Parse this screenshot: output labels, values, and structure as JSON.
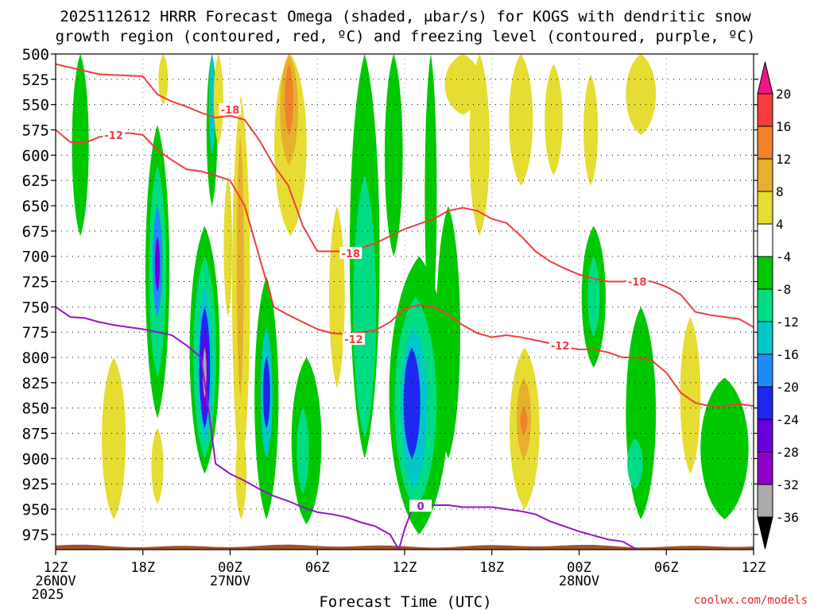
{
  "chart_data": {
    "type": "heatmap",
    "title_line1": "2025112612 HRRR Forecast Omega (shaded, μbar/s) for KOGS with dendritic snow",
    "title_line2": "growth region (contoured, red, ºC) and freezing level (contoured, purple, ºC)",
    "xlabel": "Forecast Time (UTC)",
    "credit": "coolwx.com/models",
    "x_range_hours": [
      0,
      48
    ],
    "y_range_mb": [
      500,
      990
    ],
    "yticks": [
      500,
      525,
      550,
      575,
      600,
      625,
      650,
      675,
      700,
      725,
      750,
      775,
      800,
      825,
      850,
      875,
      900,
      925,
      950,
      975
    ],
    "xticks": [
      {
        "h": 0,
        "label": "12Z",
        "sub1": "26NOV",
        "sub2": "2025"
      },
      {
        "h": 6,
        "label": "18Z",
        "sub1": "",
        "sub2": ""
      },
      {
        "h": 12,
        "label": "00Z",
        "sub1": "27NOV",
        "sub2": ""
      },
      {
        "h": 18,
        "label": "06Z",
        "sub1": "",
        "sub2": ""
      },
      {
        "h": 24,
        "label": "12Z",
        "sub1": "",
        "sub2": ""
      },
      {
        "h": 30,
        "label": "18Z",
        "sub1": "",
        "sub2": ""
      },
      {
        "h": 36,
        "label": "00Z",
        "sub1": "28NOV",
        "sub2": ""
      },
      {
        "h": 42,
        "label": "06Z",
        "sub1": "",
        "sub2": ""
      },
      {
        "h": 48,
        "label": "12Z",
        "sub1": "",
        "sub2": ""
      }
    ],
    "colorbar": {
      "colors": [
        "#aaaaaa",
        "#9200c8",
        "#6a00dc",
        "#1e28f0",
        "#1e8cff",
        "#00c8c8",
        "#00dc82",
        "#00c800",
        "#ffffff",
        "#e6dc32",
        "#e6af2d",
        "#f08228",
        "#fa3c3c"
      ],
      "labels": [
        "-36",
        "-32",
        "-28",
        "-24",
        "-20",
        "-16",
        "-12",
        "-8",
        "-4",
        "4",
        "8",
        "12",
        "16",
        "20"
      ],
      "top_color": "#f0148c",
      "bottom_color": "#000000"
    },
    "colors": {
      "dgz": "#f03c3c",
      "freezing": "#9614c8",
      "ground": "#a0522d"
    },
    "dgz_contours": [
      {
        "label": "-18",
        "label_at": [
          12.0,
          555
        ],
        "label2": "-18",
        "label2_at": [
          20.3,
          697
        ],
        "label3": "-18",
        "label3_at": [
          40.0,
          725
        ],
        "points": [
          [
            0,
            510
          ],
          [
            3,
            520
          ],
          [
            6,
            522
          ],
          [
            7,
            540
          ],
          [
            8,
            547
          ],
          [
            9,
            552
          ],
          [
            10,
            558
          ],
          [
            11,
            563
          ],
          [
            12,
            561
          ],
          [
            13,
            565
          ],
          [
            14,
            585
          ],
          [
            15,
            610
          ],
          [
            16,
            630
          ],
          [
            17,
            670
          ],
          [
            18,
            695
          ],
          [
            20,
            695
          ],
          [
            21,
            692
          ],
          [
            22,
            687
          ],
          [
            23,
            680
          ],
          [
            24,
            673
          ],
          [
            25,
            668
          ],
          [
            26,
            663
          ],
          [
            27,
            655
          ],
          [
            28,
            652
          ],
          [
            29,
            655
          ],
          [
            30,
            663
          ],
          [
            31,
            667
          ],
          [
            32,
            680
          ],
          [
            33,
            695
          ],
          [
            34,
            705
          ],
          [
            35,
            712
          ],
          [
            36,
            718
          ],
          [
            37,
            722
          ],
          [
            38,
            725
          ],
          [
            39,
            725
          ],
          [
            40,
            723
          ],
          [
            41,
            725
          ],
          [
            42,
            730
          ],
          [
            43,
            738
          ],
          [
            44,
            755
          ],
          [
            45,
            758
          ],
          [
            46,
            760
          ],
          [
            47,
            762
          ],
          [
            48,
            770
          ]
        ]
      },
      {
        "label": "-12",
        "label_at": [
          4.0,
          580
        ],
        "label2": "-12",
        "label2_at": [
          20.5,
          782
        ],
        "label3": "-12",
        "label3_at": [
          34.7,
          788
        ],
        "points": [
          [
            0,
            575
          ],
          [
            1,
            587
          ],
          [
            2,
            588
          ],
          [
            3,
            582
          ],
          [
            4,
            580
          ],
          [
            5,
            578
          ],
          [
            6,
            580
          ],
          [
            7,
            595
          ],
          [
            8,
            605
          ],
          [
            9,
            614
          ],
          [
            10,
            616
          ],
          [
            11,
            620
          ],
          [
            12,
            625
          ],
          [
            13,
            650
          ],
          [
            14,
            700
          ],
          [
            15,
            750
          ],
          [
            16,
            758
          ],
          [
            17,
            765
          ],
          [
            18,
            772
          ],
          [
            19,
            776
          ],
          [
            20,
            777
          ],
          [
            21,
            775
          ],
          [
            22,
            773
          ],
          [
            23,
            765
          ],
          [
            24,
            752
          ],
          [
            25,
            748
          ],
          [
            26,
            750
          ],
          [
            27,
            758
          ],
          [
            28,
            768
          ],
          [
            29,
            776
          ],
          [
            30,
            780
          ],
          [
            31,
            778
          ],
          [
            32,
            780
          ],
          [
            33,
            783
          ],
          [
            34,
            786
          ],
          [
            35,
            790
          ],
          [
            36,
            792
          ],
          [
            37,
            792
          ],
          [
            38,
            795
          ],
          [
            39,
            800
          ],
          [
            40,
            800
          ],
          [
            41,
            803
          ],
          [
            42,
            815
          ],
          [
            43,
            835
          ],
          [
            44,
            845
          ],
          [
            45,
            848
          ],
          [
            46,
            848
          ],
          [
            47,
            846
          ],
          [
            48,
            848
          ]
        ]
      }
    ],
    "freezing_contour": {
      "label": "0",
      "label_at": [
        25.1,
        947
      ],
      "points": [
        [
          0,
          750
        ],
        [
          1,
          760
        ],
        [
          2,
          761
        ],
        [
          3,
          765
        ],
        [
          4,
          768
        ],
        [
          5,
          770
        ],
        [
          6,
          772
        ],
        [
          7,
          775
        ],
        [
          8,
          778
        ],
        [
          9,
          788
        ],
        [
          10,
          800
        ],
        [
          10.5,
          850
        ],
        [
          11,
          905
        ],
        [
          12,
          915
        ],
        [
          13,
          922
        ],
        [
          14,
          930
        ],
        [
          15,
          937
        ],
        [
          16,
          942
        ],
        [
          17,
          948
        ],
        [
          18,
          953
        ],
        [
          19,
          955
        ],
        [
          20,
          958
        ],
        [
          21,
          963
        ],
        [
          22,
          967
        ],
        [
          23,
          975
        ],
        [
          23.6,
          990
        ],
        [
          24,
          970
        ],
        [
          24.5,
          950
        ],
        [
          25,
          946
        ],
        [
          26,
          946
        ],
        [
          27,
          946
        ],
        [
          28,
          948
        ],
        [
          29,
          948
        ],
        [
          30,
          948
        ],
        [
          31,
          950
        ],
        [
          32,
          952
        ],
        [
          33,
          955
        ],
        [
          34,
          962
        ],
        [
          35,
          967
        ],
        [
          36,
          972
        ],
        [
          37,
          976
        ],
        [
          38,
          980
        ],
        [
          39,
          982
        ],
        [
          40,
          990
        ]
      ]
    },
    "omega_patches": [
      {
        "h": [
          1.0,
          2.4
        ],
        "p": [
          500,
          680
        ],
        "v": -6,
        "cx": 1.7,
        "cy": 560,
        "shape": "tall"
      },
      {
        "h": [
          6.0,
          8.0
        ],
        "p": [
          570,
          860
        ],
        "v": -6,
        "cx": 7.0,
        "cy": 720
      },
      {
        "h": [
          6.3,
          7.7
        ],
        "p": [
          610,
          820
        ],
        "v": -10
      },
      {
        "h": [
          6.6,
          7.4
        ],
        "p": [
          650,
          760
        ],
        "v": -18
      },
      {
        "h": [
          6.8,
          7.2
        ],
        "p": [
          680,
          735
        ],
        "v": -26
      },
      {
        "h": [
          9.0,
          11.5
        ],
        "p": [
          670,
          915
        ],
        "v": -6
      },
      {
        "h": [
          9.3,
          11.2
        ],
        "p": [
          700,
          900
        ],
        "v": -10
      },
      {
        "h": [
          9.6,
          10.9
        ],
        "p": [
          730,
          885
        ],
        "v": -16
      },
      {
        "h": [
          9.8,
          10.7
        ],
        "p": [
          750,
          870
        ],
        "v": -22
      },
      {
        "h": [
          10.0,
          10.5
        ],
        "p": [
          770,
          860
        ],
        "v": -28
      },
      {
        "h": [
          10.1,
          10.4
        ],
        "p": [
          790,
          840
        ],
        "v": -34
      },
      {
        "h": [
          10.3,
          11.2
        ],
        "p": [
          500,
          650
        ],
        "v": -8
      },
      {
        "h": [
          10.5,
          11.0
        ],
        "p": [
          500,
          600
        ],
        "v": -14
      },
      {
        "h": [
          13.5,
          15.5
        ],
        "p": [
          720,
          960
        ],
        "v": -6
      },
      {
        "h": [
          14.0,
          15.0
        ],
        "p": [
          770,
          900
        ],
        "v": -14
      },
      {
        "h": [
          14.2,
          14.8
        ],
        "p": [
          800,
          870
        ],
        "v": -24
      },
      {
        "h": [
          16.0,
          18.5
        ],
        "p": [
          800,
          965
        ],
        "v": -6
      },
      {
        "h": [
          16.5,
          17.5
        ],
        "p": [
          850,
          935
        ],
        "v": -12
      },
      {
        "h": [
          20.0,
          22.5
        ],
        "p": [
          500,
          900
        ],
        "v": -6
      },
      {
        "h": [
          20.3,
          22.2
        ],
        "p": [
          620,
          880
        ],
        "v": -9
      },
      {
        "h": [
          22.5,
          24.0
        ],
        "p": [
          500,
          700
        ],
        "v": -6
      },
      {
        "h": [
          22.5,
          27.5
        ],
        "p": [
          700,
          975
        ],
        "v": -6
      },
      {
        "h": [
          23.0,
          26.5
        ],
        "p": [
          740,
          950
        ],
        "v": -10
      },
      {
        "h": [
          23.5,
          25.8
        ],
        "p": [
          770,
          930
        ],
        "v": -16
      },
      {
        "h": [
          23.8,
          25.2
        ],
        "p": [
          790,
          900
        ],
        "v": -21
      },
      {
        "h": [
          24.0,
          24.8
        ],
        "p": [
          810,
          880
        ],
        "v": -24
      },
      {
        "h": [
          25.3,
          26.3
        ],
        "p": [
          500,
          780
        ],
        "v": -6
      },
      {
        "h": [
          26.0,
          28.0
        ],
        "p": [
          650,
          900
        ],
        "v": -6
      },
      {
        "h": [
          36.0,
          38.0
        ],
        "p": [
          670,
          810
        ],
        "v": -6
      },
      {
        "h": [
          36.5,
          37.5
        ],
        "p": [
          700,
          780
        ],
        "v": -10
      },
      {
        "h": [
          39.0,
          41.5
        ],
        "p": [
          750,
          960
        ],
        "v": -6
      },
      {
        "h": [
          39.2,
          40.5
        ],
        "p": [
          880,
          930
        ],
        "v": -12
      },
      {
        "h": [
          44.0,
          48.0
        ],
        "p": [
          820,
          960
        ],
        "v": -6
      },
      {
        "h": [
          10.8,
          11.6
        ],
        "p": [
          500,
          590
        ],
        "v": 6
      },
      {
        "h": [
          12.0,
          13.5
        ],
        "p": [
          540,
          920
        ],
        "v": 5
      },
      {
        "h": [
          12.4,
          13.0
        ],
        "p": [
          580,
          840
        ],
        "v": 9
      },
      {
        "h": [
          14.8,
          17.5
        ],
        "p": [
          500,
          680
        ],
        "v": 5
      },
      {
        "h": [
          15.3,
          16.8
        ],
        "p": [
          500,
          610
        ],
        "v": 9
      },
      {
        "h": [
          15.7,
          16.4
        ],
        "p": [
          510,
          580
        ],
        "v": 13
      },
      {
        "h": [
          18.7,
          20.0
        ],
        "p": [
          650,
          830
        ],
        "v": 5
      },
      {
        "h": [
          3.0,
          5.0
        ],
        "p": [
          800,
          960
        ],
        "v": 5
      },
      {
        "h": [
          6.5,
          7.5
        ],
        "p": [
          870,
          945
        ],
        "v": 5
      },
      {
        "h": [
          12.3,
          13.2
        ],
        "p": [
          870,
          960
        ],
        "v": 5
      },
      {
        "h": [
          26.5,
          29.5
        ],
        "p": [
          500,
          560
        ],
        "v": 5
      },
      {
        "h": [
          28.3,
          30.0
        ],
        "p": [
          500,
          680
        ],
        "v": 5
      },
      {
        "h": [
          31.0,
          33.0
        ],
        "p": [
          500,
          630
        ],
        "v": 5
      },
      {
        "h": [
          33.5,
          35.0
        ],
        "p": [
          510,
          620
        ],
        "v": 5
      },
      {
        "h": [
          36.2,
          37.4
        ],
        "p": [
          520,
          630
        ],
        "v": 5
      },
      {
        "h": [
          39.0,
          41.5
        ],
        "p": [
          500,
          580
        ],
        "v": 5
      },
      {
        "h": [
          42.8,
          44.5
        ],
        "p": [
          760,
          915
        ],
        "v": 5
      },
      {
        "h": [
          31.0,
          33.5
        ],
        "p": [
          790,
          950
        ],
        "v": 5
      },
      {
        "h": [
          31.6,
          32.8
        ],
        "p": [
          820,
          900
        ],
        "v": 9
      },
      {
        "h": [
          31.9,
          32.5
        ],
        "p": [
          850,
          875
        ],
        "v": 13
      },
      {
        "h": [
          7.0,
          7.8
        ],
        "p": [
          500,
          550
        ],
        "v": 5
      },
      {
        "h": [
          11.5,
          12.2
        ],
        "p": [
          620,
          760
        ],
        "v": 5
      }
    ],
    "ground_bottom_mb": 990
  }
}
